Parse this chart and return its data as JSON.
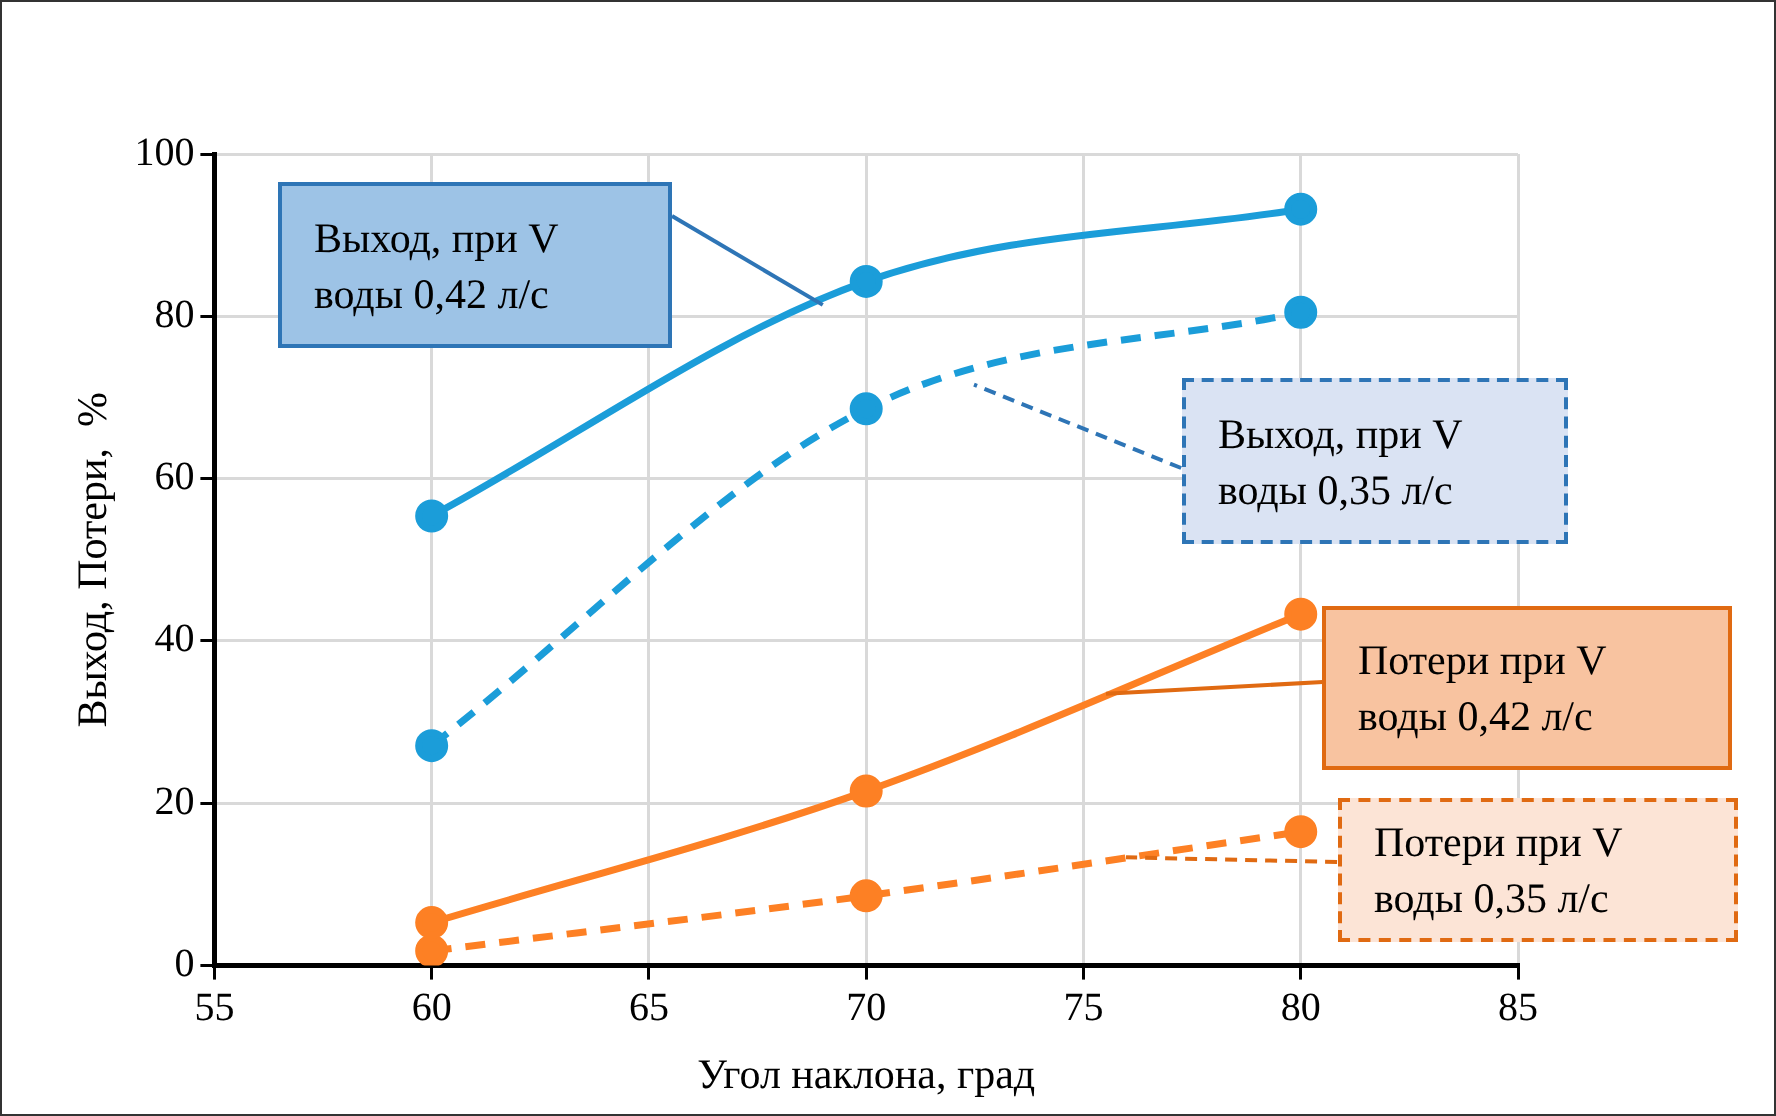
{
  "chart_data": {
    "type": "line",
    "xlabel": "Угол наклона, град",
    "ylabel": "Выход, Потери,  %",
    "x": [
      60,
      70,
      80
    ],
    "series": [
      {
        "name": "Выход, при V воды 0,42 л/с",
        "color": "#1b9dd9",
        "values": [
          55.4,
          84.3,
          93.2
        ],
        "line_style": "solid"
      },
      {
        "name": "Выход, при V воды 0,35 л/с",
        "color": "#1b9dd9",
        "values": [
          27.1,
          68.6,
          80.5
        ],
        "line_style": "dashed"
      },
      {
        "name": "Потери при V воды 0,42 л/с",
        "color": "#fd8024",
        "values": [
          5.3,
          21.5,
          43.3
        ],
        "line_style": "solid"
      },
      {
        "name": "Потери при V воды 0,35 л/с",
        "color": "#fd8024",
        "values": [
          1.8,
          8.6,
          16.5
        ],
        "line_style": "dashed"
      }
    ],
    "xlim": [
      55,
      85
    ],
    "xticks": [
      55,
      60,
      65,
      70,
      75,
      80,
      85
    ],
    "ylim": [
      0,
      100
    ],
    "yticks": [
      0,
      20,
      40,
      60,
      80,
      100
    ],
    "grid": true,
    "legend": false,
    "marker": "circle"
  }
}
